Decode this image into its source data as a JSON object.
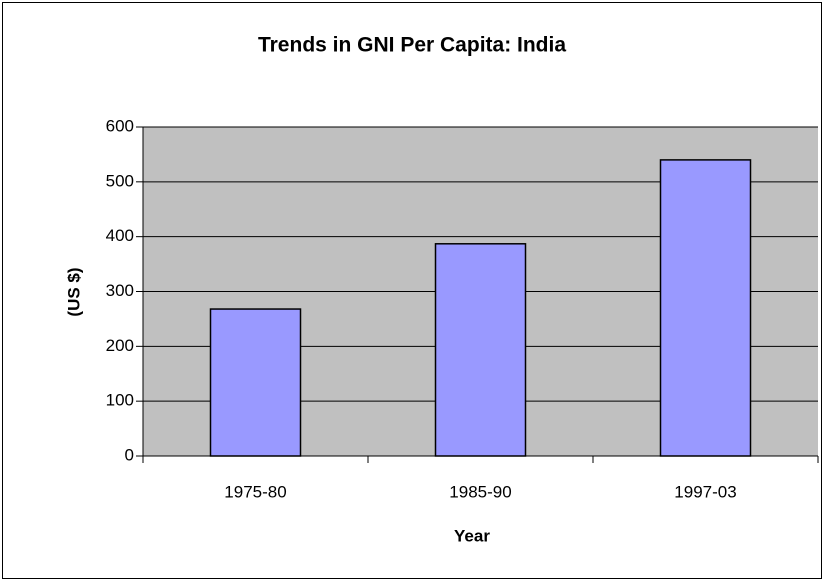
{
  "chart_data": {
    "type": "bar",
    "title": "Trends in GNI Per Capita: India",
    "x_label": "Year",
    "y_label": "(US $)",
    "categories": [
      "1975-80",
      "1985-90",
      "1997-03"
    ],
    "values": [
      268,
      387,
      540
    ],
    "color": "#9999ff",
    "ylim": [
      0,
      600
    ],
    "yticks": [
      0,
      100,
      200,
      300,
      400,
      500,
      600
    ],
    "grid": true,
    "plot_background": "#c0c0c0"
  }
}
